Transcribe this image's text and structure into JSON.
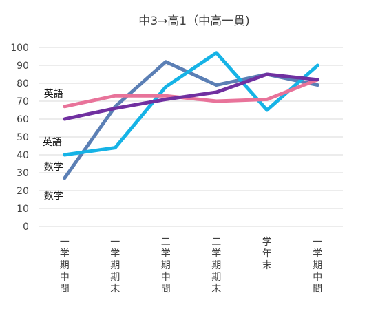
{
  "chart_data": {
    "type": "line",
    "title": "中3→高1（中高一貫)",
    "categories": [
      [
        "一",
        "学",
        "期",
        "中",
        "間"
      ],
      [
        "一",
        "学",
        "期",
        "期",
        "末"
      ],
      [
        "二",
        "学",
        "期",
        "中",
        "間"
      ],
      [
        "二",
        "学",
        "期",
        "期",
        "末"
      ],
      [
        "学",
        "年",
        "末"
      ],
      [
        "一",
        "学",
        "期",
        "中",
        "間"
      ]
    ],
    "ylim": [
      0,
      100
    ],
    "yticks": [
      0,
      10,
      20,
      30,
      40,
      50,
      60,
      70,
      80,
      90,
      100
    ],
    "grid": true,
    "series": [
      {
        "name": "数学",
        "color": "#5b7fb5",
        "values": [
          27,
          67,
          92,
          79,
          85,
          79
        ]
      },
      {
        "name": "数学",
        "color": "#16b3e6",
        "values": [
          40,
          44,
          78,
          97,
          65,
          90
        ]
      },
      {
        "name": "英語",
        "color": "#e8739a",
        "values": [
          67,
          73,
          73,
          70,
          71,
          82
        ]
      },
      {
        "name": "英語",
        "color": "#7030a0",
        "values": [
          60,
          66,
          71,
          75,
          85,
          82
        ]
      }
    ],
    "series_labels": [
      {
        "text": "英語",
        "series": 2
      },
      {
        "text": "英語",
        "series": 3
      },
      {
        "text": "数学",
        "series": 1
      },
      {
        "text": "数学",
        "series": 0
      }
    ]
  }
}
